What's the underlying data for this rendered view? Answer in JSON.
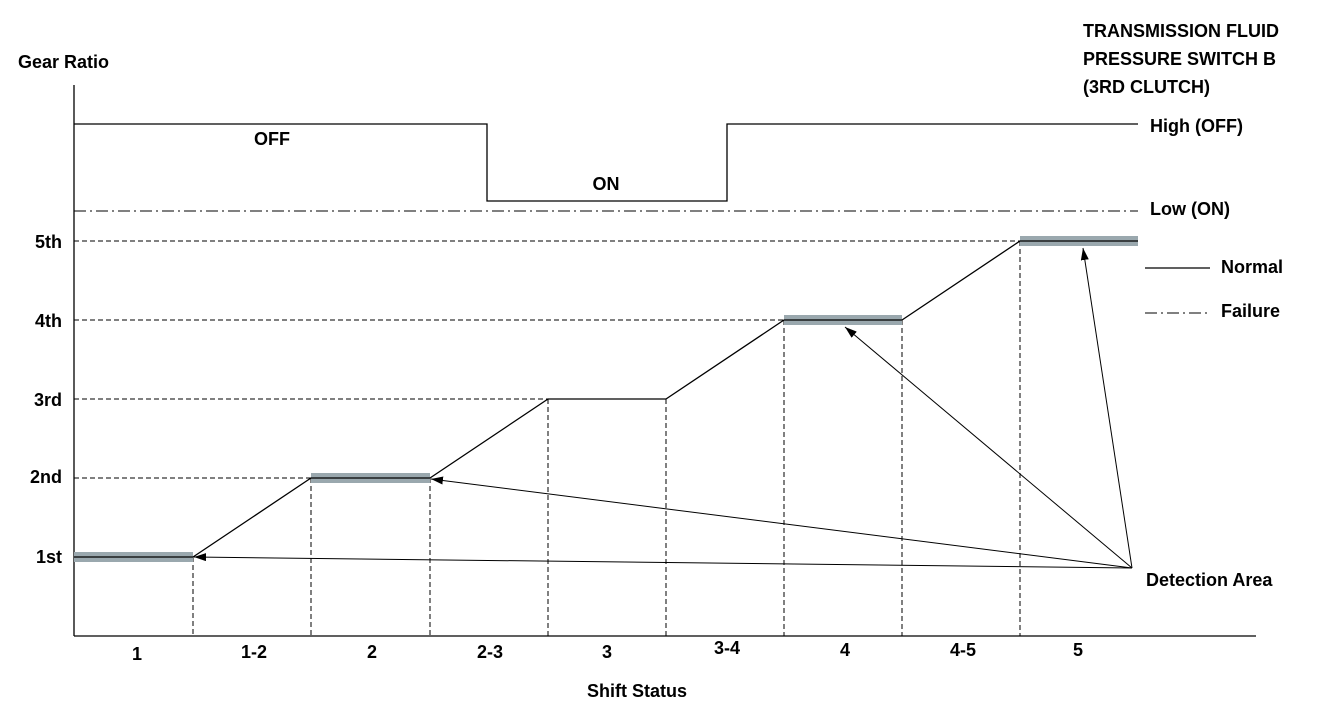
{
  "title": [
    "TRANSMISSION FLUID",
    "PRESSURE SWITCH B",
    "(3RD CLUTCH)"
  ],
  "y_axis_label": "Gear Ratio",
  "x_axis_label": "Shift Status",
  "switch_states": {
    "off": "OFF",
    "on": "ON",
    "high": "High (OFF)",
    "low": "Low (ON)"
  },
  "gears": [
    "5th",
    "4th",
    "3rd",
    "2nd",
    "1st"
  ],
  "shift_statuses": [
    "1",
    "1-2",
    "2",
    "2-3",
    "3",
    "3-4",
    "4",
    "4-5",
    "5"
  ],
  "legend": [
    "Normal",
    "Failure"
  ],
  "detection_label": "Detection Area"
}
